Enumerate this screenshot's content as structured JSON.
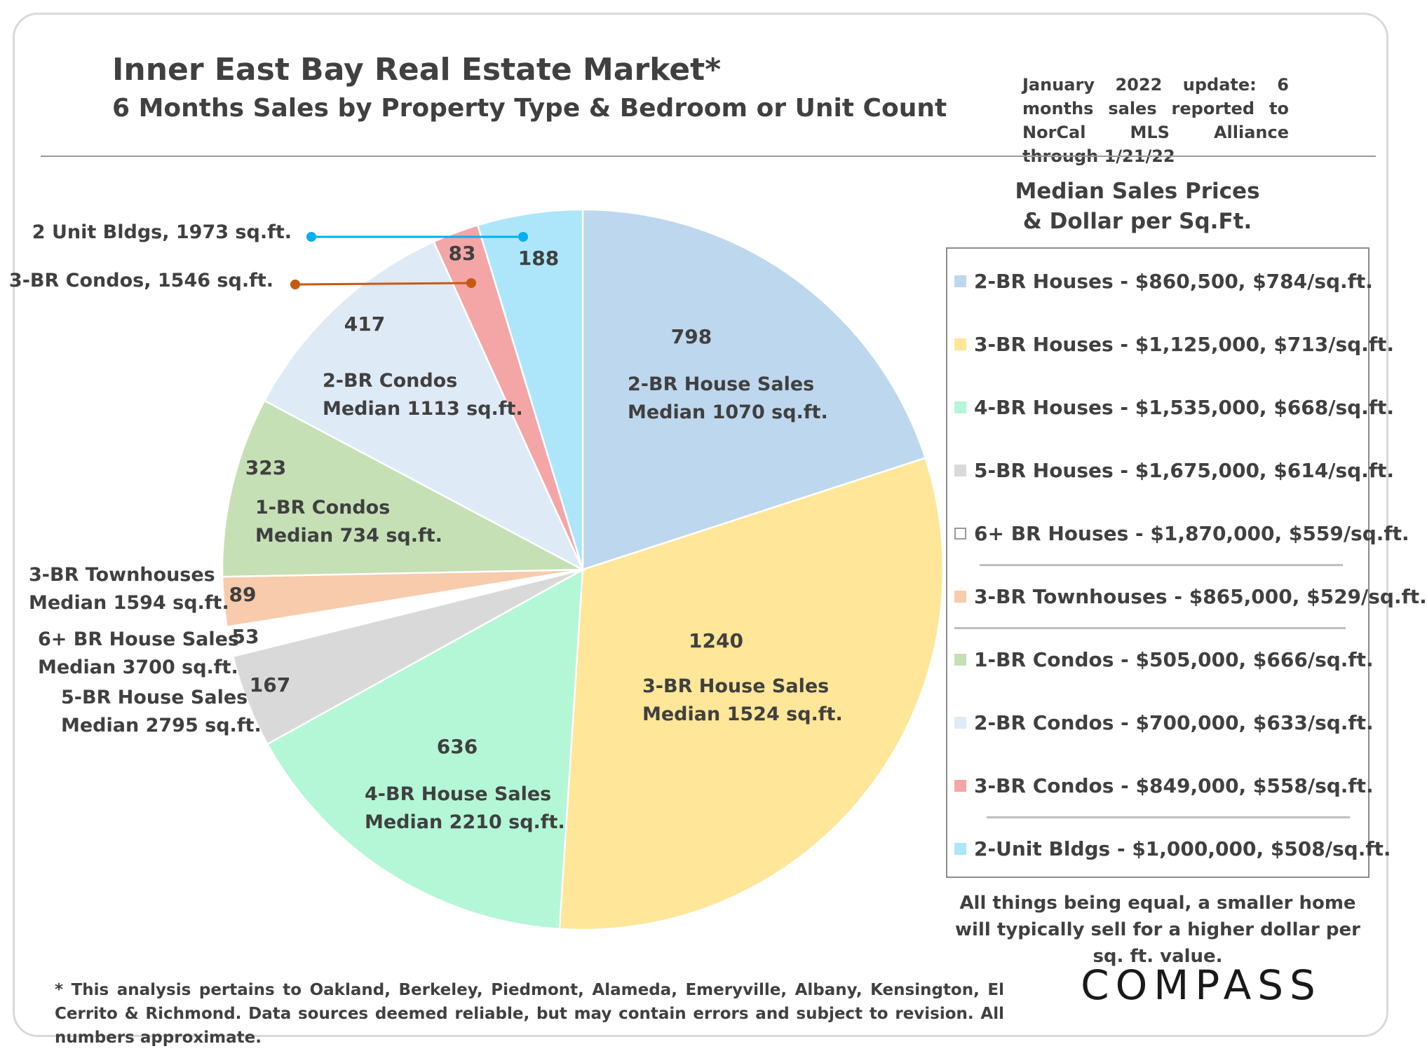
{
  "header": {
    "title": "Inner East Bay Real Estate Market*",
    "subtitle": "6 Months Sales by Property Type & Bedroom or Unit Count",
    "update_note": "January 2022 update: 6 months sales reported to NorCal MLS Alliance through 1/21/22"
  },
  "chart_data": {
    "type": "pie",
    "title": "Inner East Bay Real Estate Market*",
    "subtitle": "6 Months Sales by Property Type & Bedroom or Unit Count",
    "start": "12 o'clock",
    "direction": "clockwise",
    "slices": [
      {
        "value": 798,
        "label_lines": [
          "2-BR House Sales",
          "Median 1070 sq.ft."
        ],
        "color": "#BDD7EE"
      },
      {
        "value": 1240,
        "label_lines": [
          "3-BR House Sales",
          "Median 1524 sq.ft."
        ],
        "color": "#FFE699"
      },
      {
        "value": 636,
        "label_lines": [
          "4-BR House Sales",
          "Median 2210 sq.ft."
        ],
        "color": "#B4F7D6"
      },
      {
        "value": 167,
        "label_lines": [
          "5-BR House Sales",
          "Median 2795 sq.ft."
        ],
        "color": "#D9D9D9"
      },
      {
        "value": 53,
        "label_lines": [
          "6+ BR House Sales",
          "Median 3700 sq.ft."
        ],
        "color": "#FFFFFF"
      },
      {
        "value": 89,
        "label_lines": [
          "3-BR Townhouses",
          "Median 1594 sq.ft."
        ],
        "color": "#F8CBAD"
      },
      {
        "value": 323,
        "label_lines": [
          "1-BR Condos",
          "Median 734 sq.ft."
        ],
        "color": "#C5E0B4"
      },
      {
        "value": 417,
        "label_lines": [
          "2-BR Condos",
          "Median 1113 sq.ft."
        ],
        "color": "#DEEBF7"
      },
      {
        "value": 83,
        "label_lines": [
          "3-BR Condos, 1546 sq.ft."
        ],
        "color": "#F4A6A6",
        "leader_color": "#C55A11"
      },
      {
        "value": 188,
        "label_lines": [
          "2 Unit Bldgs, 1973 sq.ft."
        ],
        "color": "#ADE6FB",
        "leader_color": "#00B0F0"
      }
    ]
  },
  "legend": {
    "heading_line1": "Median Sales Prices",
    "heading_line2": "& Dollar per Sq.Ft.",
    "items": [
      {
        "label": "2-BR Houses - $860,500, $784/sq.ft.",
        "color": "#BDD7EE"
      },
      {
        "label": "3-BR Houses - $1,125,000, $713/sq.ft.",
        "color": "#FFE699"
      },
      {
        "label": "4-BR Houses - $1,535,000, $668/sq.ft.",
        "color": "#B4F7D6"
      },
      {
        "label": "5-BR Houses - $1,675,000, $614/sq.ft.",
        "color": "#D9D9D9"
      },
      {
        "label": "6+ BR Houses - $1,870,000, $559/sq.ft.",
        "color": "#FFFFFF"
      },
      {
        "label": "3-BR Townhouses - $865,000, $529/sq.ft.",
        "color": "#F8CBAD"
      },
      {
        "label": "1-BR Condos - $505,000, $666/sq.ft.",
        "color": "#C5E0B4"
      },
      {
        "label": "2-BR Condos - $700,000, $633/sq.ft.",
        "color": "#DEEBF7"
      },
      {
        "label": "3-BR Condos - $849,000, $558/sq.ft.",
        "color": "#F4A6A6"
      },
      {
        "label": "2-Unit Bldgs - $1,000,000, $508/sq.ft.",
        "color": "#ADE6FB"
      }
    ],
    "note": "All things being equal, a smaller home will typically sell for a higher dollar per sq. ft. value."
  },
  "footnote": "* This analysis pertains to Oakland, Berkeley, Piedmont, Alameda, Emeryville, Albany, Kensington, El Cerrito & Richmond. Data sources deemed reliable, but may contain errors and subject to revision. All numbers approximate.",
  "logo": {
    "text": "COMPASS"
  }
}
